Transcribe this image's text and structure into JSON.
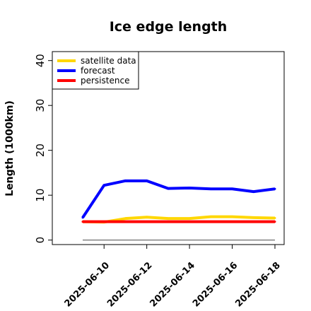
{
  "chart_data": {
    "type": "line",
    "title": "Ice edge length",
    "xlabel": "",
    "ylabel": "Length (1000km)",
    "x": [
      "2025-06-09",
      "2025-06-10",
      "2025-06-11",
      "2025-06-12",
      "2025-06-13",
      "2025-06-14",
      "2025-06-15",
      "2025-06-16",
      "2025-06-17",
      "2025-06-18"
    ],
    "xticks": [
      "2025-06-10",
      "2025-06-12",
      "2025-06-14",
      "2025-06-16",
      "2025-06-18"
    ],
    "highlighted_xtick": "2025-06-10",
    "highlight_color": "#228B22",
    "ylim": [
      -1,
      42
    ],
    "yticks": [
      0,
      10,
      20,
      30,
      40
    ],
    "grid": false,
    "legend_position": "top-left",
    "reference_line": {
      "y": 0,
      "color": "#808080"
    },
    "series": [
      {
        "name": "satellite data",
        "color": "#FFD700",
        "values": [
          4.1,
          4.0,
          4.8,
          5.1,
          4.8,
          4.8,
          5.2,
          5.2,
          5.0,
          4.9
        ]
      },
      {
        "name": "forecast",
        "color": "#0000FF",
        "values": [
          5.0,
          12.2,
          13.2,
          13.2,
          11.5,
          11.6,
          11.4,
          11.4,
          10.8,
          11.4
        ]
      },
      {
        "name": "persistence",
        "color": "#FF0000",
        "values": [
          4.1,
          4.1,
          4.1,
          4.1,
          4.1,
          4.1,
          4.1,
          4.1,
          4.1,
          4.1
        ]
      }
    ]
  }
}
